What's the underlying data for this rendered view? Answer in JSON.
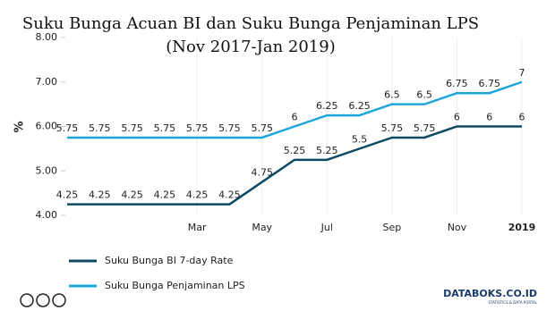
{
  "chart_data": {
    "type": "line",
    "title": "Suku Bunga Acuan BI dan Suku Bunga Penjaminan LPS (Nov 2017-Jan 2019)",
    "y_label": "%",
    "categories": [
      null,
      null,
      null,
      null,
      "Mar",
      null,
      "May",
      null,
      "Jul",
      null,
      "Sep",
      null,
      "Nov",
      null,
      "2019"
    ],
    "series": [
      {
        "name": "Suku Bunga BI 7-day Rate",
        "color": "#0d4a63",
        "values": [
          4.25,
          4.25,
          4.25,
          4.25,
          4.25,
          4.25,
          4.75,
          5.25,
          5.25,
          5.5,
          5.75,
          5.75,
          6,
          6,
          6
        ]
      },
      {
        "name": "Suku Bunga Penjaminan LPS",
        "color": "#1ea6dc",
        "values": [
          5.75,
          5.75,
          5.75,
          5.75,
          5.75,
          5.75,
          5.75,
          6,
          6.25,
          6.25,
          6.5,
          6.5,
          6.75,
          6.75,
          7
        ]
      }
    ],
    "ylim": [
      4,
      8
    ],
    "yticks": [
      {
        "value": 4,
        "label": "4.00"
      },
      {
        "value": 5,
        "label": "5.00"
      },
      {
        "value": 6,
        "label": "6.00"
      },
      {
        "value": 7,
        "label": "7.00"
      },
      {
        "value": 8,
        "label": "8.00"
      }
    ],
    "grid": "x",
    "legend": "bottom",
    "brand": "DATABOKS.CO.ID",
    "brand_tagline": "STATISTICS & DATA PORTAL"
  }
}
